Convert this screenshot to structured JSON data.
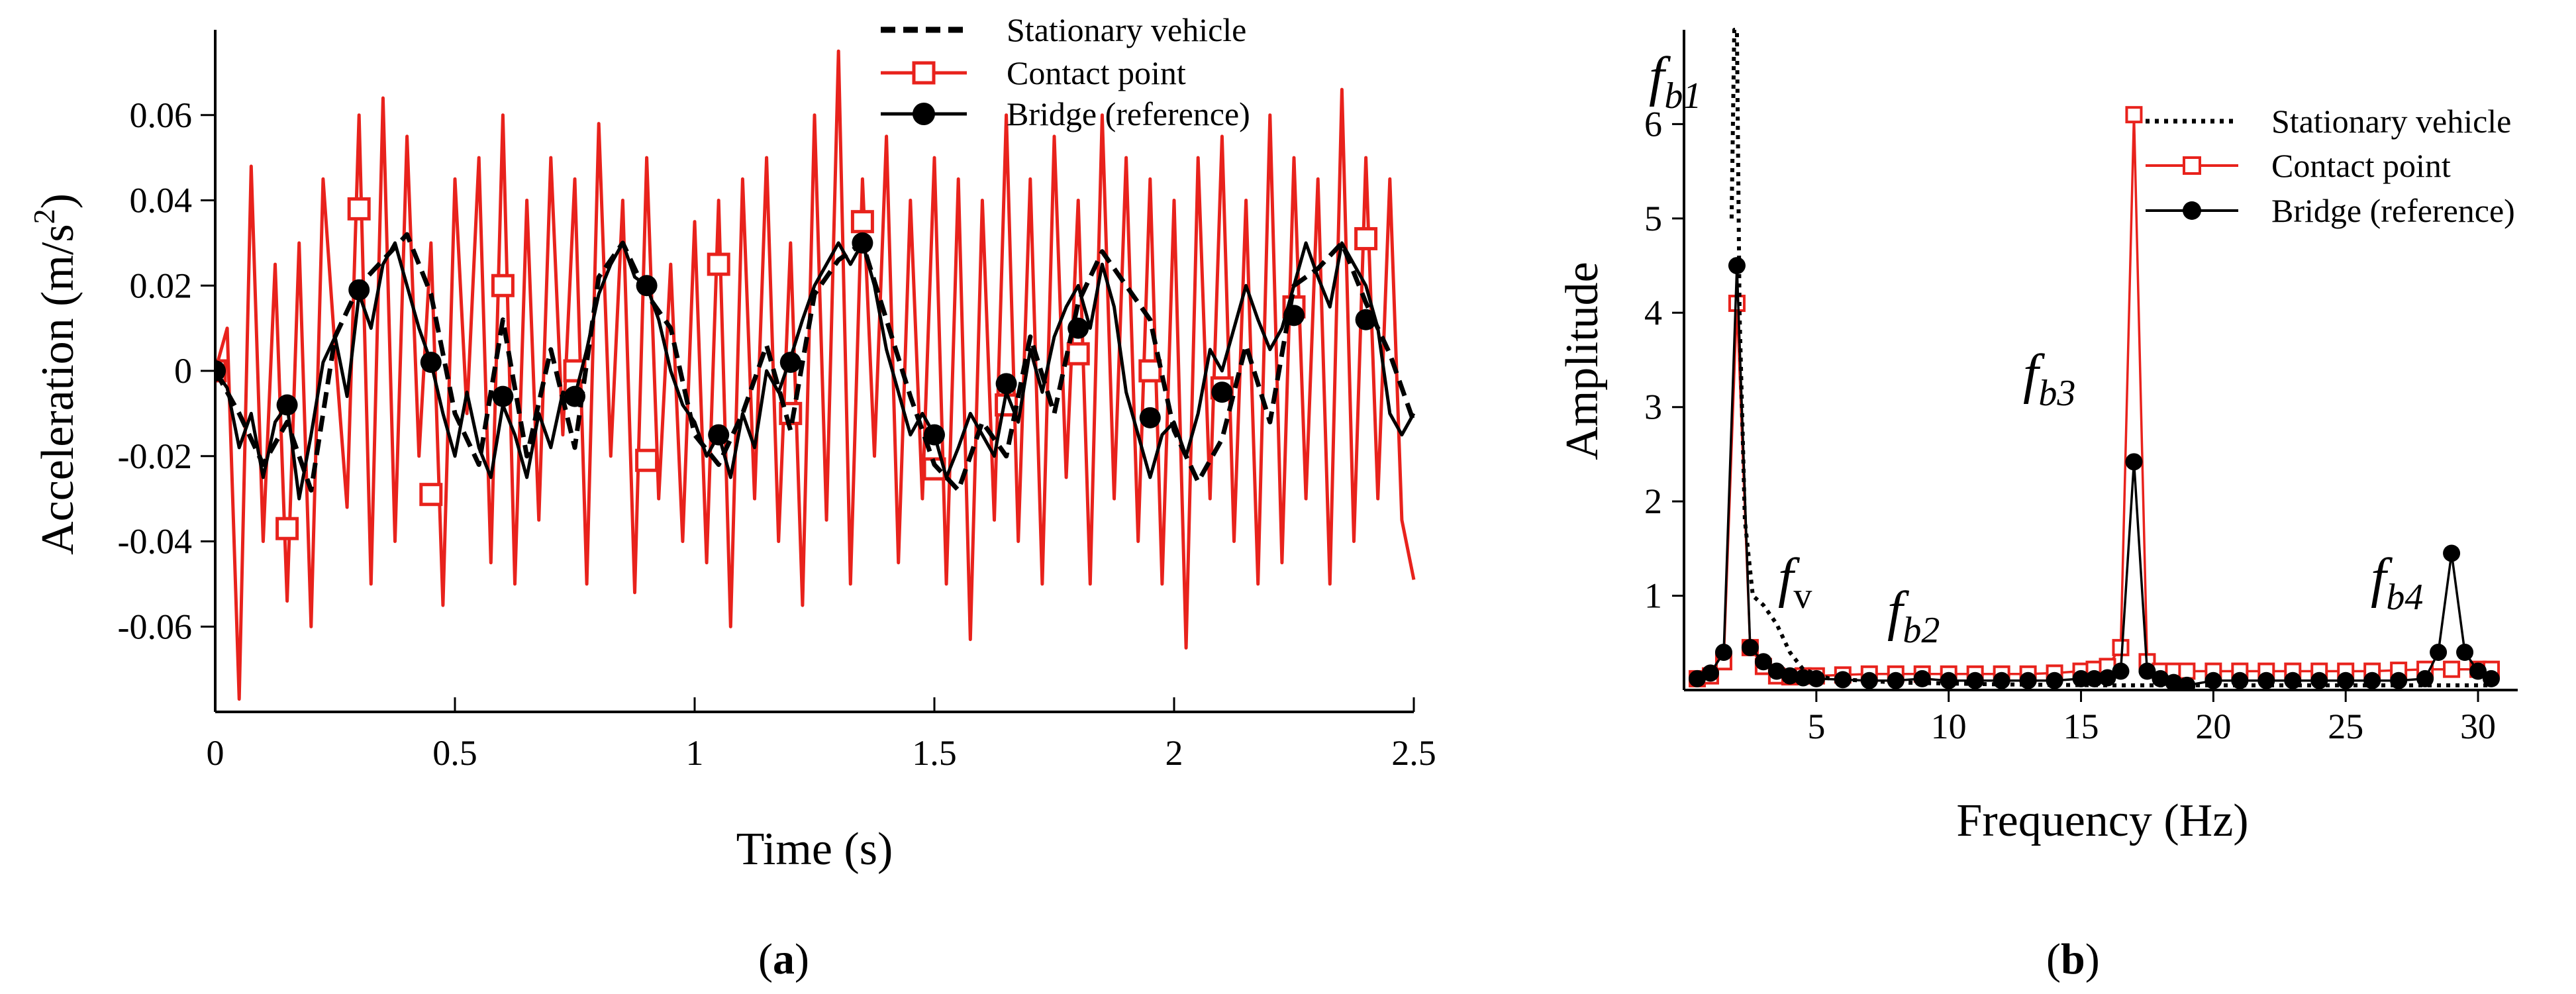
{
  "chart_data": [
    {
      "type": "line",
      "panel_label_parts": [
        "(",
        "a",
        ")"
      ],
      "xlabel": "Time (s)",
      "ylabel_parts": [
        "Acceleration (m/s",
        "2",
        ")"
      ],
      "xlim": [
        0,
        2.5
      ],
      "ylim": [
        -0.08,
        0.08
      ],
      "xticks": [
        0,
        0.5,
        1,
        1.5,
        2,
        2.5
      ],
      "xtick_labels": [
        "0",
        "0.5",
        "1",
        "1.5",
        "2",
        "2.5"
      ],
      "yticks": [
        -0.06,
        -0.04,
        -0.02,
        0,
        0.02,
        0.04,
        0.06
      ],
      "ytick_labels": [
        "-0.06",
        "-0.04",
        "-0.02",
        "0",
        "0.02",
        "0.04",
        "0.06"
      ],
      "legend_position": "top-right",
      "series": [
        {
          "name": "Stationary vehicle",
          "color": "#000000",
          "style": "dashed",
          "marker": "none",
          "x": [
            0,
            0.05,
            0.1,
            0.15,
            0.2,
            0.25,
            0.3,
            0.35,
            0.4,
            0.45,
            0.5,
            0.55,
            0.6,
            0.65,
            0.7,
            0.75,
            0.8,
            0.85,
            0.9,
            0.95,
            1.0,
            1.05,
            1.1,
            1.15,
            1.2,
            1.25,
            1.3,
            1.35,
            1.4,
            1.45,
            1.5,
            1.55,
            1.6,
            1.65,
            1.7,
            1.75,
            1.8,
            1.85,
            1.9,
            1.95,
            2.0,
            2.05,
            2.1,
            2.15,
            2.2,
            2.25,
            2.3,
            2.35,
            2.4,
            2.45,
            2.5
          ],
          "values": [
            0,
            -0.01,
            -0.022,
            -0.012,
            -0.028,
            0.008,
            0.02,
            0.026,
            0.032,
            0.018,
            -0.01,
            -0.022,
            0.012,
            -0.02,
            0.005,
            -0.018,
            0.022,
            0.03,
            0.018,
            0.01,
            -0.015,
            -0.022,
            -0.01,
            0.006,
            -0.014,
            0.018,
            0.026,
            0.03,
            0.012,
            -0.006,
            -0.022,
            -0.028,
            -0.012,
            -0.02,
            0.008,
            -0.01,
            0.016,
            0.028,
            0.02,
            0.012,
            -0.014,
            -0.026,
            -0.016,
            0.006,
            -0.012,
            0.02,
            0.024,
            0.03,
            0.016,
            0.004,
            -0.012
          ]
        },
        {
          "name": "Contact point",
          "color": "#e8221c",
          "style": "solid",
          "marker": "open-square",
          "x": [
            0,
            0.025,
            0.05,
            0.075,
            0.1,
            0.125,
            0.15,
            0.175,
            0.2,
            0.225,
            0.25,
            0.275,
            0.3,
            0.325,
            0.35,
            0.375,
            0.4,
            0.425,
            0.45,
            0.475,
            0.5,
            0.525,
            0.55,
            0.575,
            0.6,
            0.625,
            0.65,
            0.675,
            0.7,
            0.725,
            0.75,
            0.775,
            0.8,
            0.825,
            0.85,
            0.875,
            0.9,
            0.925,
            0.95,
            0.975,
            1.0,
            1.025,
            1.05,
            1.075,
            1.1,
            1.125,
            1.15,
            1.175,
            1.2,
            1.225,
            1.25,
            1.275,
            1.3,
            1.325,
            1.35,
            1.375,
            1.4,
            1.425,
            1.45,
            1.475,
            1.5,
            1.525,
            1.55,
            1.575,
            1.6,
            1.625,
            1.65,
            1.675,
            1.7,
            1.725,
            1.75,
            1.775,
            1.8,
            1.825,
            1.85,
            1.875,
            1.9,
            1.925,
            1.95,
            1.975,
            2.0,
            2.025,
            2.05,
            2.075,
            2.1,
            2.125,
            2.15,
            2.175,
            2.2,
            2.225,
            2.25,
            2.275,
            2.3,
            2.325,
            2.35,
            2.375,
            2.4,
            2.425,
            2.45,
            2.475,
            2.5
          ],
          "values": [
            0,
            0.01,
            -0.077,
            0.048,
            -0.04,
            0.025,
            -0.054,
            0.03,
            -0.06,
            0.045,
            0.005,
            -0.032,
            0.06,
            -0.05,
            0.064,
            -0.04,
            0.055,
            -0.02,
            0.03,
            -0.055,
            0.045,
            -0.01,
            0.05,
            -0.045,
            0.06,
            -0.05,
            0.04,
            -0.035,
            0.05,
            -0.015,
            0.045,
            -0.05,
            0.058,
            -0.02,
            0.04,
            -0.052,
            0.05,
            -0.03,
            0.025,
            -0.04,
            0.035,
            -0.045,
            0.04,
            -0.06,
            0.045,
            -0.03,
            0.05,
            -0.04,
            0.03,
            -0.055,
            0.06,
            -0.035,
            0.075,
            -0.05,
            0.045,
            -0.02,
            0.055,
            -0.045,
            0.04,
            -0.03,
            0.05,
            -0.05,
            0.045,
            -0.063,
            0.04,
            -0.035,
            0.06,
            -0.04,
            0.045,
            -0.05,
            0.055,
            -0.025,
            0.04,
            -0.05,
            0.06,
            -0.03,
            0.05,
            -0.04,
            0.045,
            -0.05,
            0.04,
            -0.065,
            0.05,
            -0.03,
            0.055,
            -0.04,
            0.04,
            -0.05,
            0.06,
            -0.045,
            0.05,
            -0.03,
            0.045,
            -0.05,
            0.066,
            -0.04,
            0.05,
            -0.03,
            0.045,
            -0.035,
            -0.049
          ],
          "marker_x": [
            0,
            0.15,
            0.3,
            0.45,
            0.6,
            0.75,
            0.9,
            1.05,
            1.2,
            1.35,
            1.5,
            1.65,
            1.8,
            1.95,
            2.1,
            2.25,
            2.4
          ],
          "marker_values": [
            0,
            -0.037,
            0.038,
            -0.029,
            0.02,
            0.0,
            -0.021,
            0.025,
            -0.01,
            0.035,
            -0.023,
            -0.008,
            0.004,
            0.0,
            -0.004,
            0.015,
            0.031
          ]
        },
        {
          "name": "Bridge (reference)",
          "color": "#000000",
          "style": "solid",
          "marker": "filled-circle",
          "x": [
            0,
            0.025,
            0.05,
            0.075,
            0.1,
            0.125,
            0.15,
            0.175,
            0.2,
            0.225,
            0.25,
            0.275,
            0.3,
            0.325,
            0.35,
            0.375,
            0.4,
            0.425,
            0.45,
            0.475,
            0.5,
            0.525,
            0.55,
            0.575,
            0.6,
            0.625,
            0.65,
            0.675,
            0.7,
            0.725,
            0.75,
            0.775,
            0.8,
            0.825,
            0.85,
            0.875,
            0.9,
            0.925,
            0.95,
            0.975,
            1.0,
            1.025,
            1.05,
            1.075,
            1.1,
            1.125,
            1.15,
            1.175,
            1.2,
            1.225,
            1.25,
            1.275,
            1.3,
            1.325,
            1.35,
            1.375,
            1.4,
            1.425,
            1.45,
            1.475,
            1.5,
            1.525,
            1.55,
            1.575,
            1.6,
            1.625,
            1.65,
            1.675,
            1.7,
            1.725,
            1.75,
            1.775,
            1.8,
            1.825,
            1.85,
            1.875,
            1.9,
            1.925,
            1.95,
            1.975,
            2.0,
            2.025,
            2.05,
            2.075,
            2.1,
            2.125,
            2.15,
            2.175,
            2.2,
            2.225,
            2.25,
            2.275,
            2.3,
            2.325,
            2.35,
            2.375,
            2.4,
            2.425,
            2.45,
            2.475,
            2.5
          ],
          "values": [
            0,
            -0.004,
            -0.018,
            -0.01,
            -0.025,
            -0.012,
            -0.008,
            -0.03,
            -0.015,
            0.002,
            0.008,
            -0.006,
            0.018,
            0.01,
            0.025,
            0.03,
            0.02,
            0.01,
            0.002,
            -0.01,
            -0.02,
            -0.005,
            -0.018,
            -0.025,
            -0.008,
            -0.015,
            -0.025,
            -0.01,
            -0.018,
            -0.005,
            -0.006,
            0.005,
            0.018,
            0.025,
            0.03,
            0.022,
            0.02,
            0.012,
            0.0,
            -0.008,
            -0.012,
            -0.02,
            -0.015,
            -0.025,
            -0.01,
            -0.018,
            0.0,
            -0.005,
            0.003,
            0.012,
            0.02,
            0.025,
            0.03,
            0.025,
            0.03,
            0.02,
            0.005,
            -0.005,
            -0.015,
            -0.01,
            -0.015,
            -0.025,
            -0.018,
            -0.01,
            -0.015,
            -0.02,
            -0.005,
            -0.012,
            0.005,
            -0.005,
            0.008,
            0.015,
            0.02,
            0.01,
            0.025,
            0.015,
            -0.005,
            -0.015,
            -0.025,
            -0.015,
            -0.012,
            -0.02,
            -0.01,
            0.005,
            0.0,
            0.01,
            0.02,
            0.012,
            0.005,
            0.01,
            0.02,
            0.03,
            0.022,
            0.015,
            0.03,
            0.025,
            0.02,
            0.01,
            -0.01,
            -0.015,
            -0.01
          ],
          "marker_x": [
            0,
            0.15,
            0.3,
            0.45,
            0.6,
            0.75,
            0.9,
            1.05,
            1.2,
            1.35,
            1.5,
            1.65,
            1.8,
            1.95,
            2.1,
            2.25,
            2.4
          ],
          "marker_values": [
            0,
            -0.008,
            0.019,
            0.002,
            -0.006,
            -0.006,
            0.02,
            -0.015,
            0.002,
            0.03,
            -0.015,
            -0.003,
            0.01,
            -0.011,
            -0.005,
            0.013,
            0.012
          ]
        }
      ]
    },
    {
      "type": "line",
      "panel_label_parts": [
        "(",
        "b",
        ")"
      ],
      "xlabel": "Frequency (Hz)",
      "ylabel": "Amplitude",
      "xlim": [
        0,
        31.5
      ],
      "ylim": [
        0,
        7
      ],
      "xticks": [
        5,
        10,
        15,
        20,
        25,
        30
      ],
      "xtick_labels": [
        "5",
        "10",
        "15",
        "20",
        "25",
        "30"
      ],
      "yticks": [
        1,
        2,
        3,
        4,
        5,
        6
      ],
      "ytick_labels": [
        "1",
        "2",
        "3",
        "4",
        "5",
        "6"
      ],
      "legend_position": "top-right",
      "annotations": [
        {
          "base": "f",
          "sub": "b1",
          "x": 0.6,
          "y": 6.3
        },
        {
          "base": "f",
          "sub": "v",
          "x": 3.7,
          "y": 1.05
        },
        {
          "base": "f",
          "sub": "b2",
          "x": 8.6,
          "y": 0.6
        },
        {
          "base": "f",
          "sub": "b3",
          "x": 13.2,
          "y": 3.1
        },
        {
          "base": "f",
          "sub": "b4",
          "x": 26.4,
          "y": 1.05
        }
      ],
      "series": [
        {
          "name": "Stationary vehicle",
          "color": "#000000",
          "style": "dotted",
          "marker": "none",
          "x": [
            1.8,
            1.9,
            2.0,
            2.1,
            2.3,
            2.6,
            3.0,
            3.5,
            4.0,
            4.5,
            5.5,
            8,
            12,
            16,
            20,
            25,
            30,
            30.5
          ],
          "values": [
            5.0,
            7.0,
            7.0,
            4.0,
            1.8,
            1.0,
            0.9,
            0.7,
            0.4,
            0.22,
            0.12,
            0.08,
            0.06,
            0.05,
            0.05,
            0.05,
            0.05,
            0.05
          ]
        },
        {
          "name": "Contact point",
          "color": "#e8221c",
          "style": "solid",
          "marker": "open-square",
          "x": [
            0.5,
            1.0,
            1.5,
            2.0,
            2.5,
            3.0,
            3.5,
            4.0,
            4.5,
            5,
            6,
            7,
            8,
            9,
            10,
            11,
            12,
            13,
            14,
            15,
            15.5,
            16,
            16.5,
            17.0,
            17.5,
            18,
            18.5,
            19,
            20,
            21,
            22,
            23,
            24,
            25,
            26,
            27,
            28,
            29,
            30,
            30.5
          ],
          "values": [
            0.12,
            0.15,
            0.3,
            4.1,
            0.45,
            0.25,
            0.15,
            0.14,
            0.15,
            0.15,
            0.16,
            0.17,
            0.17,
            0.17,
            0.17,
            0.17,
            0.17,
            0.17,
            0.18,
            0.2,
            0.22,
            0.25,
            0.45,
            6.1,
            0.3,
            0.2,
            0.2,
            0.2,
            0.2,
            0.2,
            0.2,
            0.2,
            0.2,
            0.2,
            0.2,
            0.21,
            0.22,
            0.22,
            0.22,
            0.22
          ]
        },
        {
          "name": "Bridge (reference)",
          "color": "#000000",
          "style": "solid",
          "marker": "filled-circle",
          "x": [
            0.5,
            1.0,
            1.5,
            2.0,
            2.5,
            3.0,
            3.5,
            4.0,
            4.5,
            5,
            6,
            7,
            8,
            9,
            10,
            11,
            12,
            13,
            14,
            15,
            15.5,
            16,
            16.5,
            17.0,
            17.5,
            18,
            18.5,
            19,
            20,
            21,
            22,
            23,
            24,
            25,
            26,
            27,
            28,
            28.5,
            29,
            29.5,
            30,
            30.5
          ],
          "values": [
            0.12,
            0.18,
            0.4,
            4.5,
            0.45,
            0.3,
            0.2,
            0.15,
            0.13,
            0.12,
            0.11,
            0.1,
            0.1,
            0.12,
            0.1,
            0.1,
            0.1,
            0.1,
            0.1,
            0.12,
            0.12,
            0.13,
            0.2,
            2.42,
            0.2,
            0.12,
            0.08,
            0.05,
            0.1,
            0.1,
            0.1,
            0.1,
            0.1,
            0.1,
            0.1,
            0.1,
            0.12,
            0.4,
            1.45,
            0.4,
            0.2,
            0.12
          ]
        }
      ]
    }
  ]
}
